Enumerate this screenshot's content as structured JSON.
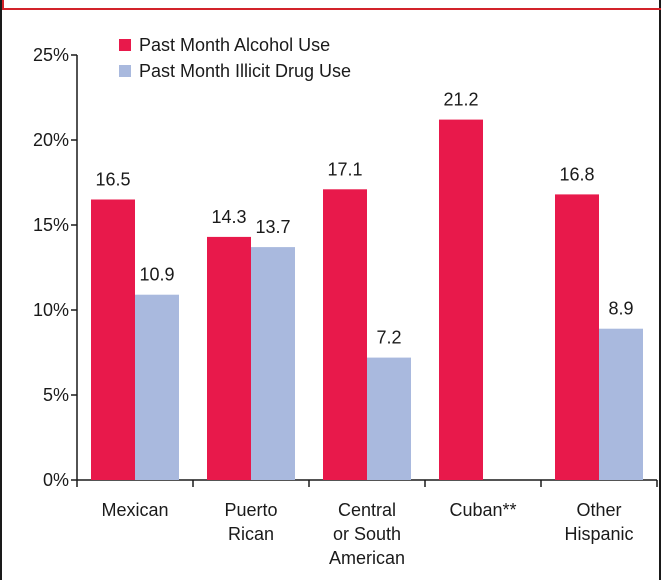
{
  "chart_data": {
    "type": "bar",
    "categories": [
      [
        "Mexican"
      ],
      [
        "Puerto",
        "Rican"
      ],
      [
        "Central",
        "or South",
        "American"
      ],
      [
        "Cuban**"
      ],
      [
        "Other",
        "Hispanic"
      ]
    ],
    "series": [
      {
        "name": "Past Month Alcohol Use",
        "color": "#e8194b",
        "values": [
          16.5,
          14.3,
          17.1,
          21.2,
          16.8
        ],
        "labels": [
          "16.5",
          "14.3",
          "17.1",
          "21.2",
          "16.8"
        ]
      },
      {
        "name": "Past Month Illicit Drug Use",
        "color": "#a9b9de",
        "values": [
          10.9,
          13.7,
          7.2,
          null,
          8.9
        ],
        "labels": [
          "10.9",
          "13.7",
          "7.2",
          "",
          "8.9"
        ]
      }
    ],
    "ylim": [
      0,
      25
    ],
    "yticks": [
      "0%",
      "5%",
      "10%",
      "15%",
      "20%",
      "25%"
    ],
    "legend_position": "top-left",
    "grid": false
  }
}
